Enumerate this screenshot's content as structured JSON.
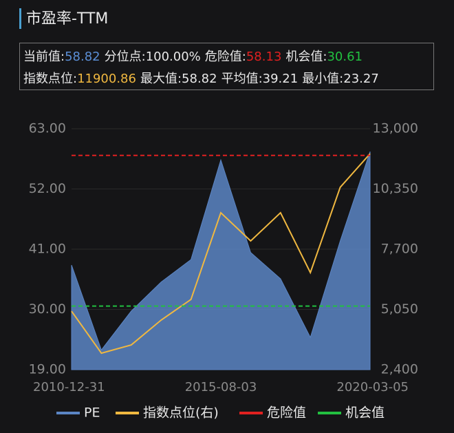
{
  "header": {
    "title": "市盈率-TTM"
  },
  "info": {
    "row1": [
      {
        "label": "当前值:",
        "value": "58.82",
        "color": "#5b8fd6"
      },
      {
        "label": "分位点:",
        "value": "100.00%",
        "color": "#e8e8e8"
      },
      {
        "label": "危险值:",
        "value": "58.13",
        "color": "#e02020"
      },
      {
        "label": "机会值:",
        "value": "30.61",
        "color": "#22c040"
      }
    ],
    "row2": [
      {
        "label": "指数点位:",
        "value": "11900.86",
        "color": "#f0b840"
      },
      {
        "label": "最大值:",
        "value": "58.82",
        "color": "#e8e8e8"
      },
      {
        "label": "平均值:",
        "value": "39.21",
        "color": "#e8e8e8"
      },
      {
        "label": "最小值:",
        "value": "23.27",
        "color": "#e8e8e8"
      }
    ]
  },
  "chart_data": {
    "type": "line",
    "categories": [
      "2010-12-31",
      null,
      null,
      null,
      null,
      "2015-08-03",
      null,
      null,
      null,
      null,
      "2020-03-05"
    ],
    "series": [
      {
        "name": "PE",
        "color": "#5b85c4",
        "fill": true,
        "values": [
          38.1,
          22.6,
          29.7,
          35.0,
          39.1,
          57.3,
          40.4,
          35.6,
          24.9,
          42.5,
          58.82
        ]
      },
      {
        "name": "指数点位(右)",
        "color": "#f0b840",
        "axis": "y2",
        "values": [
          4973,
          3125,
          3489,
          4580,
          5488,
          9305,
          8063,
          9305,
          6670,
          10425,
          11900.86
        ]
      }
    ],
    "reference_lines": [
      {
        "name": "危险值",
        "color": "#e02020",
        "value": 58.13
      },
      {
        "name": "机会值",
        "color": "#22c040",
        "value": 30.61
      }
    ],
    "ylim": [
      19,
      63
    ],
    "yticks": [
      {
        "value": 19,
        "label": "19.00"
      },
      {
        "value": 30,
        "label": "30.00"
      },
      {
        "value": 41,
        "label": "41.00"
      },
      {
        "value": 52,
        "label": "52.00"
      },
      {
        "value": 63,
        "label": "63.00"
      }
    ],
    "y2lim": [
      2400,
      13000
    ],
    "y2ticks": [
      {
        "value": 2400,
        "label": "2,400"
      },
      {
        "value": 5050,
        "label": "5,050"
      },
      {
        "value": 7700,
        "label": "7,700"
      },
      {
        "value": 10350,
        "label": "10,350"
      },
      {
        "value": 13000,
        "label": "13,000"
      }
    ],
    "grid": true
  }
}
